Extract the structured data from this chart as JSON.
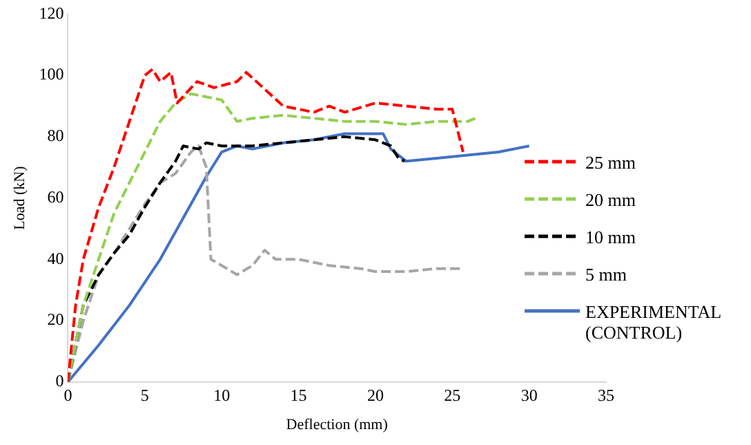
{
  "chart_data": {
    "type": "line",
    "xlabel": "Deflection (mm)",
    "ylabel": "Load (kN)",
    "xlim": [
      0,
      35
    ],
    "xticks": [
      0,
      5,
      10,
      15,
      20,
      25,
      30,
      35
    ],
    "ylim": [
      0,
      120
    ],
    "yticks": [
      0,
      20,
      40,
      60,
      80,
      100,
      120
    ],
    "grid": false,
    "legend": "right",
    "marker": "none",
    "series": [
      {
        "name": "25 mm",
        "color": "#ff0000",
        "line_style": "dashed",
        "x": [
          0,
          0.5,
          1,
          2,
          3,
          4,
          5,
          5.5,
          6,
          6.7,
          7.1,
          8.4,
          9.5,
          11,
          11.6,
          14,
          16,
          17,
          18,
          20,
          22,
          24,
          25,
          25.7
        ],
        "values": [
          0,
          25,
          40,
          57,
          70,
          85,
          100,
          102,
          98,
          101,
          91,
          98,
          96,
          98,
          101,
          90,
          88,
          90,
          88,
          91,
          90,
          89,
          89,
          75
        ]
      },
      {
        "name": "20 mm",
        "color": "#92d050",
        "line_style": "dashed",
        "x": [
          0,
          1,
          2,
          3,
          4,
          5,
          6,
          7,
          8,
          9,
          10,
          11,
          12,
          14,
          16,
          18,
          20,
          22,
          24,
          26,
          26.5
        ],
        "values": [
          0,
          25,
          40,
          55,
          65,
          75,
          85,
          91,
          94,
          93,
          92,
          85,
          86,
          87,
          86,
          85,
          85,
          84,
          85,
          85,
          86
        ]
      },
      {
        "name": "10 mm",
        "color": "#000000",
        "line_style": "dashed",
        "x": [
          0,
          1,
          2,
          3,
          4,
          5,
          6,
          7,
          7.5,
          8.5,
          9,
          10,
          12,
          14,
          16,
          18,
          20,
          21,
          21.5,
          21.9
        ],
        "values": [
          0,
          25,
          35,
          42,
          48,
          57,
          65,
          72,
          77,
          76,
          78,
          77,
          77,
          78,
          79,
          80,
          79,
          77,
          73,
          72
        ]
      },
      {
        "name": "5 mm",
        "color": "#a6a6a6",
        "line_style": "dashed",
        "x": [
          0,
          1,
          2,
          3,
          4,
          5,
          6,
          7,
          8,
          8.5,
          9,
          9.3,
          10,
          11,
          12,
          12.8,
          13.5,
          15,
          17,
          19,
          20,
          21,
          22,
          24,
          25.7
        ],
        "values": [
          0,
          20,
          35,
          42,
          50,
          58,
          65,
          68,
          75,
          77,
          70,
          40,
          38,
          35,
          38,
          43,
          40,
          40,
          38,
          37,
          36,
          36,
          36,
          37,
          37
        ]
      },
      {
        "name": "EXPERIMENTAL (CONTROL)",
        "color": "#4472c4",
        "line_style": "solid",
        "x": [
          0,
          2,
          4,
          6,
          8,
          9,
          10,
          11,
          12,
          14,
          16,
          18,
          19,
          20.5,
          21,
          21.5,
          22,
          24,
          26,
          28,
          30
        ],
        "values": [
          0,
          12,
          25,
          40,
          58,
          67,
          75,
          77,
          76,
          78,
          79,
          81,
          81,
          81,
          76,
          74,
          72,
          73,
          74,
          75,
          77
        ]
      }
    ]
  }
}
